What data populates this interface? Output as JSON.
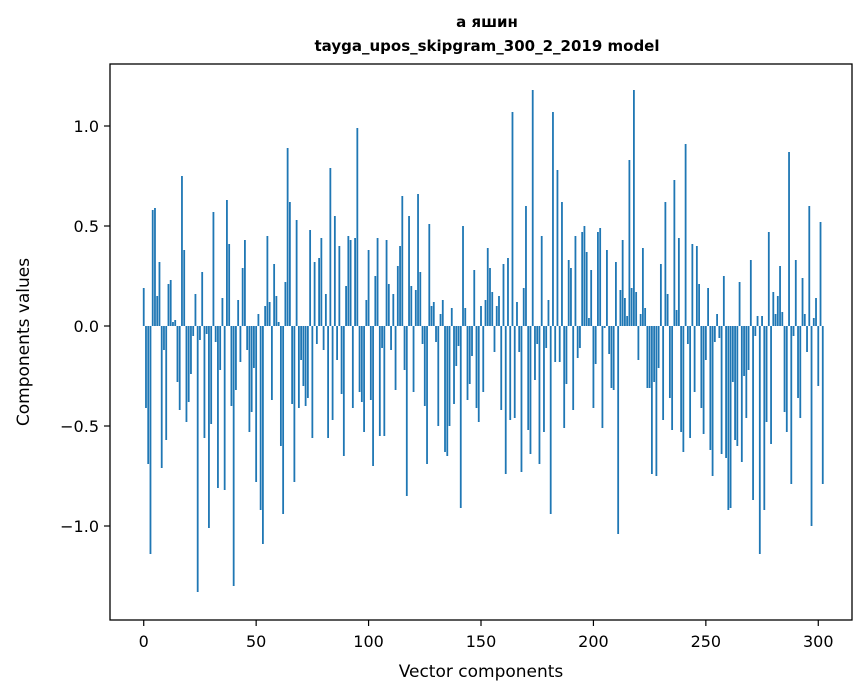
{
  "chart_data": {
    "type": "bar",
    "title": "а яшин",
    "subtitle": "tayga_upos_skipgram_300_2_2019 model",
    "xlabel": "Vector components",
    "ylabel": "Components values",
    "xlim": [
      -15,
      315
    ],
    "ylim": [
      -1.47,
      1.31
    ],
    "xticks": [
      0,
      50,
      100,
      150,
      200,
      250,
      300
    ],
    "yticks": [
      -1.0,
      -0.5,
      0.0,
      0.5,
      1.0
    ],
    "ytick_labels": [
      "−1.0",
      "−0.5",
      "0.0",
      "0.5",
      "1.0"
    ],
    "grid": false,
    "legend": "none",
    "bar_color": "#1f77b4",
    "values": [
      0.19,
      -0.41,
      -0.69,
      -1.14,
      0.58,
      0.59,
      0.15,
      0.32,
      -0.71,
      -0.12,
      -0.57,
      0.21,
      0.23,
      0.02,
      0.03,
      -0.28,
      -0.42,
      0.75,
      0.38,
      -0.48,
      -0.38,
      -0.24,
      -0.05,
      0.16,
      -1.33,
      -0.07,
      0.27,
      -0.56,
      -0.04,
      -1.01,
      -0.49,
      0.57,
      -0.08,
      -0.81,
      -0.22,
      0.14,
      -0.82,
      0.63,
      0.41,
      -0.4,
      -1.3,
      -0.32,
      0.13,
      -0.18,
      0.29,
      0.43,
      -0.12,
      -0.53,
      -0.43,
      -0.21,
      -0.78,
      0.06,
      -0.92,
      -1.09,
      0.1,
      0.45,
      0.12,
      -0.37,
      0.31,
      0.15,
      0.02,
      -0.6,
      -0.94,
      0.22,
      0.89,
      0.62,
      -0.39,
      -0.78,
      0.53,
      -0.41,
      -0.17,
      -0.3,
      -0.4,
      -0.36,
      0.48,
      -0.56,
      0.32,
      -0.09,
      0.34,
      0.44,
      -0.12,
      0.16,
      -0.56,
      0.79,
      -0.47,
      0.55,
      -0.17,
      0.4,
      -0.34,
      -0.65,
      0.2,
      0.45,
      0.43,
      -0.41,
      0.44,
      0.99,
      -0.33,
      -0.38,
      -0.53,
      0.13,
      0.38,
      -0.37,
      -0.7,
      0.25,
      0.44,
      -0.55,
      -0.11,
      -0.55,
      0.43,
      0.21,
      -0.12,
      0.16,
      -0.32,
      0.3,
      0.4,
      0.65,
      -0.22,
      -0.85,
      0.55,
      0.2,
      -0.33,
      0.18,
      0.66,
      0.27,
      -0.09,
      -0.4,
      -0.69,
      0.51,
      0.1,
      0.12,
      -0.08,
      -0.5,
      0.06,
      0.13,
      -0.63,
      -0.65,
      -0.5,
      0.09,
      -0.39,
      -0.2,
      -0.1,
      -0.91,
      0.5,
      0.09,
      -0.37,
      -0.29,
      -0.15,
      0.28,
      -0.41,
      -0.48,
      0.1,
      -0.33,
      0.13,
      0.39,
      0.29,
      0.17,
      -0.13,
      0.1,
      0.15,
      -0.42,
      0.31,
      -0.74,
      0.34,
      -0.47,
      1.07,
      -0.46,
      0.12,
      -0.13,
      -0.73,
      0.19,
      0.6,
      -0.52,
      -0.64,
      1.18,
      -0.27,
      -0.09,
      -0.69,
      0.45,
      -0.53,
      -0.11,
      0.13,
      -0.94,
      1.07,
      -0.18,
      0.78,
      -0.18,
      0.62,
      -0.51,
      -0.29,
      0.33,
      0.29,
      -0.42,
      0.45,
      -0.16,
      -0.11,
      0.47,
      0.5,
      0.37,
      0.04,
      0.28,
      -0.41,
      -0.19,
      0.47,
      0.49,
      -0.51,
      -0.01,
      0.38,
      -0.14,
      -0.31,
      -0.32,
      0.32,
      -1.04,
      0.18,
      0.43,
      0.14,
      0.05,
      0.83,
      0.19,
      1.18,
      0.17,
      -0.17,
      0.06,
      0.39,
      0.09,
      -0.31,
      -0.31,
      -0.74,
      -0.28,
      -0.75,
      -0.21,
      0.31,
      -0.47,
      0.62,
      0.16,
      -0.36,
      -0.52,
      0.73,
      0.08,
      0.44,
      -0.53,
      -0.63,
      0.91,
      -0.09,
      -0.56,
      0.41,
      -0.33,
      0.4,
      0.21,
      -0.41,
      -0.54,
      -0.17,
      0.19,
      -0.62,
      -0.75,
      -0.08,
      0.06,
      -0.06,
      -0.64,
      0.25,
      -0.66,
      -0.92,
      -0.91,
      -0.28,
      -0.57,
      -0.6,
      0.22,
      -0.68,
      -0.25,
      -0.46,
      -0.22,
      0.33,
      -0.87,
      -0.05,
      0.05,
      -1.14,
      0.05,
      -0.92,
      -0.48,
      0.47,
      -0.59,
      0.17,
      0.06,
      0.15,
      0.3,
      0.07,
      -0.43,
      -0.53,
      0.87,
      -0.79,
      -0.05,
      0.33,
      -0.36,
      -0.46,
      0.24,
      0.06,
      -0.13,
      0.6,
      -1.0,
      0.04,
      0.14,
      -0.3,
      0.52,
      -0.79
    ]
  }
}
